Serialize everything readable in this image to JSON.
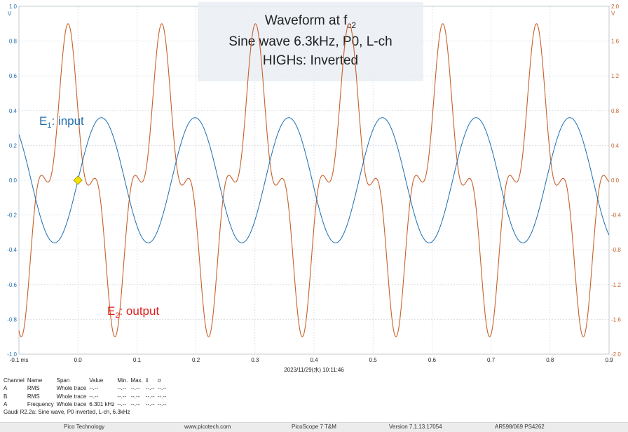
{
  "chart_data": {
    "type": "line",
    "title_lines": [
      "Waveform at f",
      "Sine wave 6.3kHz, P0, L-ch",
      "HIGHs: Inverted"
    ],
    "title_subscript": "c2",
    "x_unit": "ms",
    "xlim": [
      -0.1,
      0.9
    ],
    "x_ticks": [
      "-0.1 ms",
      "0.0",
      "0.1",
      "0.2",
      "0.3",
      "0.4",
      "0.5",
      "0.6",
      "0.7",
      "0.8",
      "0.9"
    ],
    "y_left_unit": "V",
    "y_left_lim": [
      -1.0,
      1.0
    ],
    "y_left_ticks": [
      "1.0",
      "0.8",
      "0.6",
      "0.4",
      "0.2",
      "0.0",
      "-0.2",
      "-0.4",
      "-0.6",
      "-0.8",
      "-1.0"
    ],
    "y_right_unit": "V",
    "y_right_lim": [
      -2.0,
      2.0
    ],
    "y_right_ticks": [
      "2.0",
      "1.6",
      "1.2",
      "0.8",
      "0.4",
      "0.0",
      "-0.4",
      "-0.8",
      "-1.2",
      "-1.6",
      "-2.0"
    ],
    "timestamp": "2023/11/29(水) 10:11:46",
    "grid": true,
    "series": [
      {
        "name": "input",
        "label_main": "E",
        "label_sub": "1",
        "label_rest": ": input",
        "color": "#1f6eb0",
        "axis": "left",
        "frequency_khz": 6.3,
        "amplitude": 0.36,
        "zero_crossing_rising_ms": 0.0
      },
      {
        "name": "output",
        "label_main": "E",
        "label_sub": "2",
        "label_rest": ": output",
        "color": "#c8612a",
        "label_color": "#e02020",
        "axis": "right",
        "frequency_khz": 6.3,
        "peak_max": 1.72,
        "peak_min": -1.64
      }
    ],
    "trigger_marker": {
      "x": 0.0,
      "y": 0.0,
      "color": "#f2e300"
    }
  },
  "measurements": {
    "headers": [
      "Channel",
      "Name",
      "Span",
      "Value",
      "Min.",
      "Max.",
      "x̄",
      "σ"
    ],
    "rows": [
      [
        "A",
        "RMS",
        "Whole trace",
        "--.--",
        "--.--",
        "--.--",
        "--.--",
        "--.--"
      ],
      [
        "B",
        "RMS",
        "Whole trace",
        "--.--",
        "--.--",
        "--.--",
        "--.--",
        "--.--"
      ],
      [
        "A",
        "Frequency",
        "Whole trace",
        "6.301 kHz",
        "--.--",
        "--.--",
        "--.--",
        "--.--"
      ]
    ]
  },
  "caption": "Gaudi R2.2a: Sine wave, P0 inverted, L-ch, 6.3kHz",
  "footer": {
    "company": "Pico Technology",
    "website": "www.picotech.com",
    "product": "PicoScope 7 T&M",
    "version": "Version 7.1.13.17054",
    "device": "AR598/069 PS4262"
  }
}
